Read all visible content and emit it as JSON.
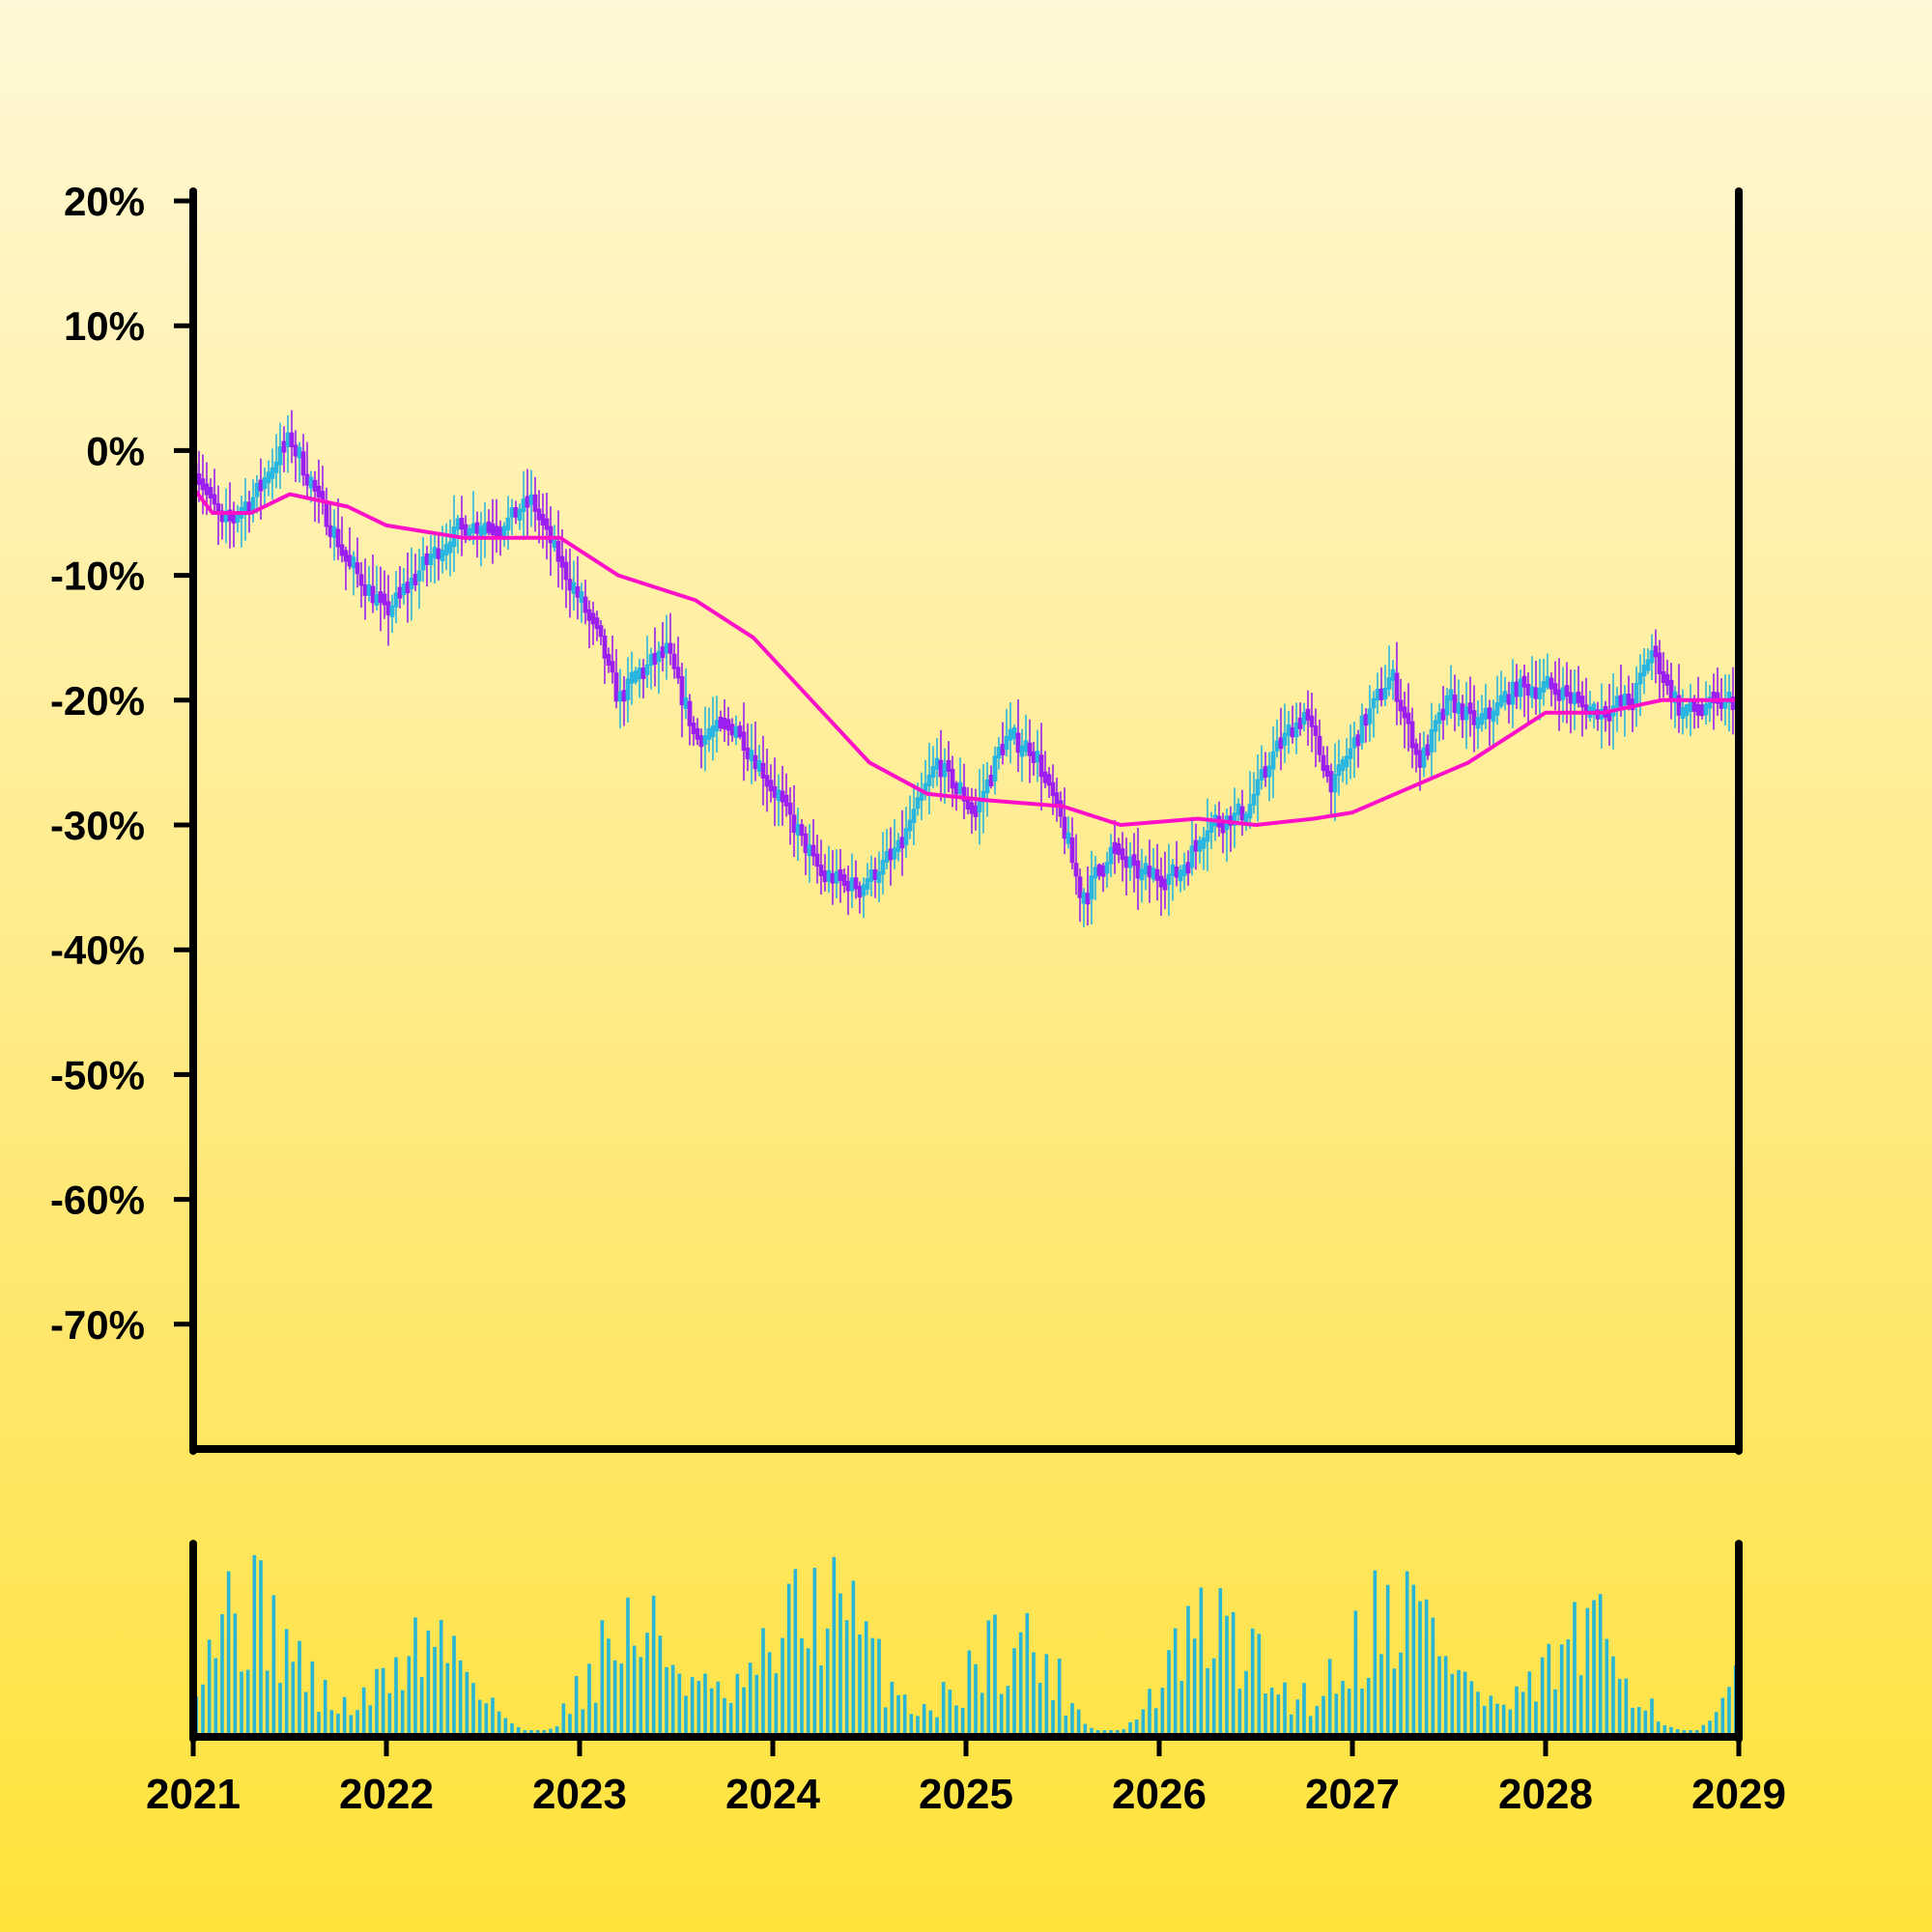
{
  "chart_data": {
    "type": "candlestick",
    "title": "",
    "xlabel": "",
    "ylabel": "",
    "x_ticks": [
      "2021",
      "2022",
      "2023",
      "2024",
      "2025",
      "2026",
      "2027",
      "2028",
      "2029"
    ],
    "xlim": [
      2021,
      2029
    ],
    "y_ticks": [
      "20%",
      "10%",
      "0%",
      "-10%",
      "-20%",
      "-30%",
      "-40%",
      "-50%",
      "-60%",
      "-70%"
    ],
    "ylim": [
      -80,
      20
    ],
    "grid": false,
    "colors": {
      "up": "#29b6e0",
      "down": "#9b1ff0",
      "moving_average": "#ff10c8",
      "volume": "#29b6d6",
      "axes": "#000000"
    },
    "series": [
      {
        "kind": "candles",
        "anchors": [
          {
            "x": 2021.0,
            "y": -1
          },
          {
            "x": 2021.15,
            "y": -6
          },
          {
            "x": 2021.3,
            "y": -4
          },
          {
            "x": 2021.5,
            "y": 1
          },
          {
            "x": 2021.65,
            "y": -4
          },
          {
            "x": 2021.8,
            "y": -9
          },
          {
            "x": 2022.0,
            "y": -13
          },
          {
            "x": 2022.2,
            "y": -9
          },
          {
            "x": 2022.4,
            "y": -6
          },
          {
            "x": 2022.6,
            "y": -6
          },
          {
            "x": 2022.75,
            "y": -4
          },
          {
            "x": 2022.9,
            "y": -9
          },
          {
            "x": 2023.1,
            "y": -15
          },
          {
            "x": 2023.2,
            "y": -20
          },
          {
            "x": 2023.3,
            "y": -18
          },
          {
            "x": 2023.45,
            "y": -16
          },
          {
            "x": 2023.6,
            "y": -23
          },
          {
            "x": 2023.8,
            "y": -22
          },
          {
            "x": 2024.0,
            "y": -27
          },
          {
            "x": 2024.25,
            "y": -34
          },
          {
            "x": 2024.45,
            "y": -35
          },
          {
            "x": 2024.65,
            "y": -32
          },
          {
            "x": 2024.85,
            "y": -25
          },
          {
            "x": 2025.05,
            "y": -29
          },
          {
            "x": 2025.2,
            "y": -23
          },
          {
            "x": 2025.35,
            "y": -24
          },
          {
            "x": 2025.5,
            "y": -30
          },
          {
            "x": 2025.6,
            "y": -36
          },
          {
            "x": 2025.75,
            "y": -32
          },
          {
            "x": 2025.9,
            "y": -34
          },
          {
            "x": 2026.1,
            "y": -34
          },
          {
            "x": 2026.25,
            "y": -30
          },
          {
            "x": 2026.45,
            "y": -29
          },
          {
            "x": 2026.6,
            "y": -24
          },
          {
            "x": 2026.75,
            "y": -21
          },
          {
            "x": 2026.9,
            "y": -27
          },
          {
            "x": 2027.05,
            "y": -22
          },
          {
            "x": 2027.2,
            "y": -18
          },
          {
            "x": 2027.35,
            "y": -25
          },
          {
            "x": 2027.5,
            "y": -20
          },
          {
            "x": 2027.65,
            "y": -22
          },
          {
            "x": 2027.85,
            "y": -19
          },
          {
            "x": 2028.05,
            "y": -19
          },
          {
            "x": 2028.25,
            "y": -21
          },
          {
            "x": 2028.45,
            "y": -20
          },
          {
            "x": 2028.55,
            "y": -16
          },
          {
            "x": 2028.7,
            "y": -21
          },
          {
            "x": 2029.0,
            "y": -20
          }
        ]
      },
      {
        "kind": "moving_average",
        "points": [
          {
            "x": 2021.0,
            "y": -3
          },
          {
            "x": 2021.1,
            "y": -5
          },
          {
            "x": 2021.3,
            "y": -5
          },
          {
            "x": 2021.5,
            "y": -3.5
          },
          {
            "x": 2021.8,
            "y": -4.5
          },
          {
            "x": 2022.0,
            "y": -6
          },
          {
            "x": 2022.4,
            "y": -7
          },
          {
            "x": 2022.9,
            "y": -7
          },
          {
            "x": 2023.2,
            "y": -10
          },
          {
            "x": 2023.6,
            "y": -12
          },
          {
            "x": 2023.9,
            "y": -15
          },
          {
            "x": 2024.2,
            "y": -20
          },
          {
            "x": 2024.5,
            "y": -25
          },
          {
            "x": 2024.8,
            "y": -27.5
          },
          {
            "x": 2025.1,
            "y": -28
          },
          {
            "x": 2025.5,
            "y": -28.5
          },
          {
            "x": 2025.8,
            "y": -30
          },
          {
            "x": 2026.2,
            "y": -29.5
          },
          {
            "x": 2026.5,
            "y": -30
          },
          {
            "x": 2026.8,
            "y": -29.5
          },
          {
            "x": 2027.0,
            "y": -29
          },
          {
            "x": 2027.3,
            "y": -27
          },
          {
            "x": 2027.6,
            "y": -25
          },
          {
            "x": 2028.0,
            "y": -21
          },
          {
            "x": 2028.3,
            "y": -21
          },
          {
            "x": 2028.6,
            "y": -20
          },
          {
            "x": 2029.0,
            "y": -20
          }
        ]
      }
    ]
  }
}
